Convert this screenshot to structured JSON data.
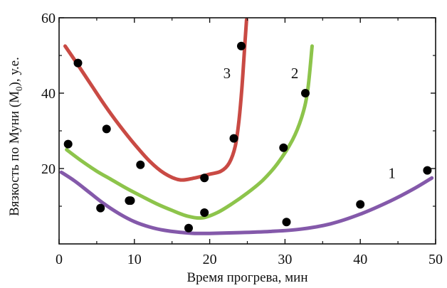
{
  "chart_data": {
    "type": "line",
    "xlabel": "Время прогрева, мин",
    "ylabel": {
      "prefix": "Вязкость по Муни (М",
      "subscript": "0",
      "suffix": "), у.е."
    },
    "xlim": [
      0,
      50
    ],
    "ylim": [
      0,
      60
    ],
    "xticks": [
      0,
      10,
      20,
      30,
      40,
      50
    ],
    "yticks": [
      20,
      40,
      60
    ],
    "grid": false,
    "series": [
      {
        "name": "1",
        "color": "#8459aa",
        "curve": [
          [
            0.3,
            19
          ],
          [
            2,
            16.8
          ],
          [
            4,
            13.7
          ],
          [
            6,
            10.6
          ],
          [
            8,
            8
          ],
          [
            10,
            5.9
          ],
          [
            12,
            4.5
          ],
          [
            14,
            3.6
          ],
          [
            16,
            3.1
          ],
          [
            18,
            2.8
          ],
          [
            20,
            2.8
          ],
          [
            24,
            3
          ],
          [
            28,
            3.3
          ],
          [
            32,
            3.9
          ],
          [
            36,
            5.3
          ],
          [
            40,
            7.9
          ],
          [
            44,
            11.4
          ],
          [
            47,
            14.5
          ],
          [
            49.5,
            17.5
          ]
        ],
        "points": [
          [
            5.5,
            9.5
          ],
          [
            9.5,
            11.5
          ],
          [
            17.2,
            4.2
          ],
          [
            30.2,
            5.8
          ],
          [
            40,
            10.5
          ],
          [
            48.9,
            19.5
          ]
        ]
      },
      {
        "name": "2",
        "color": "#8dc44b",
        "curve": [
          [
            1,
            25
          ],
          [
            3,
            22
          ],
          [
            5,
            19.3
          ],
          [
            7,
            17
          ],
          [
            9,
            14.7
          ],
          [
            11,
            12.6
          ],
          [
            13,
            10.6
          ],
          [
            15,
            8.9
          ],
          [
            17,
            7.4
          ],
          [
            19,
            6.9
          ],
          [
            21,
            8.3
          ],
          [
            23,
            10.7
          ],
          [
            25,
            13.5
          ],
          [
            27,
            16.8
          ],
          [
            29,
            21.3
          ],
          [
            31,
            27.6
          ],
          [
            32.2,
            33.5
          ],
          [
            33,
            40.5
          ],
          [
            33.6,
            52.5
          ]
        ],
        "points": [
          [
            1.2,
            26.5
          ],
          [
            9.3,
            11.5
          ],
          [
            19.3,
            8.3
          ],
          [
            29.8,
            25.5
          ],
          [
            32.7,
            40
          ]
        ]
      },
      {
        "name": "3",
        "color": "#c94a44",
        "curve": [
          [
            0.8,
            52.5
          ],
          [
            2,
            49
          ],
          [
            4,
            43
          ],
          [
            6,
            37
          ],
          [
            8,
            31.5
          ],
          [
            10,
            26.5
          ],
          [
            12,
            22
          ],
          [
            14,
            18.7
          ],
          [
            16,
            17
          ],
          [
            18,
            17.5
          ],
          [
            20,
            18.5
          ],
          [
            21.5,
            19.3
          ],
          [
            22.6,
            21.5
          ],
          [
            23.4,
            26
          ],
          [
            23.9,
            33
          ],
          [
            24.3,
            42
          ],
          [
            24.6,
            51
          ],
          [
            24.9,
            59.5
          ]
        ],
        "points": [
          [
            2.5,
            48
          ],
          [
            6.3,
            30.5
          ],
          [
            10.8,
            21
          ],
          [
            19.3,
            17.5
          ],
          [
            23.2,
            28
          ],
          [
            24.2,
            52.5
          ]
        ]
      }
    ],
    "curve_labels": [
      {
        "series": "1",
        "text": "1",
        "x": 44.2,
        "y": 17.5
      },
      {
        "series": "2",
        "text": "2",
        "x": 31.3,
        "y": 44
      },
      {
        "series": "3",
        "text": "3",
        "x": 22.3,
        "y": 44
      }
    ]
  }
}
